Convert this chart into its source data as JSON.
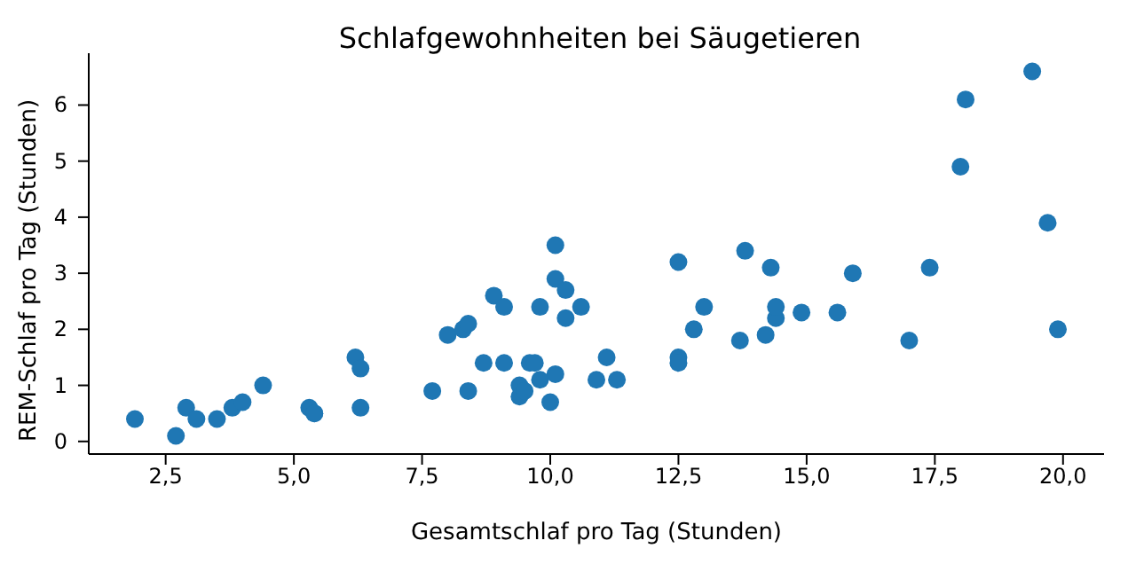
{
  "chart_data": {
    "type": "scatter",
    "title": "Schlafgewohnheiten bei Säugetieren",
    "xlabel": "Gesamtschlaf pro Tag (Stunden)",
    "ylabel": "REM-Schlaf pro Tag (Stunden)",
    "x": [
      1.9,
      2.7,
      2.9,
      3.1,
      3.5,
      3.8,
      4.0,
      4.4,
      5.3,
      5.4,
      5.4,
      6.2,
      6.3,
      6.3,
      7.7,
      8.0,
      8.3,
      8.4,
      8.4,
      8.7,
      8.9,
      9.1,
      9.1,
      9.4,
      9.4,
      9.5,
      9.6,
      9.7,
      9.8,
      9.8,
      10.0,
      10.1,
      10.1,
      10.1,
      10.3,
      10.3,
      10.6,
      10.9,
      11.1,
      11.3,
      12.5,
      12.5,
      12.5,
      12.8,
      13.0,
      13.7,
      13.8,
      14.2,
      14.3,
      14.4,
      14.4,
      14.9,
      15.6,
      15.9,
      17.0,
      17.4,
      18.0,
      18.1,
      19.4,
      19.7,
      19.9
    ],
    "series": [
      {
        "color": "#1f77b4",
        "values": [
          0.4,
          0.1,
          0.6,
          0.4,
          0.4,
          0.6,
          0.7,
          1.0,
          0.6,
          0.5,
          0.5,
          1.5,
          1.3,
          0.6,
          0.9,
          1.9,
          2.0,
          2.1,
          0.9,
          1.4,
          2.6,
          2.4,
          1.4,
          1.0,
          0.8,
          0.9,
          1.4,
          1.4,
          2.4,
          1.1,
          0.7,
          3.5,
          2.9,
          1.2,
          2.7,
          2.2,
          2.4,
          1.1,
          1.5,
          1.1,
          3.2,
          1.5,
          1.4,
          2.0,
          2.4,
          1.8,
          3.4,
          1.9,
          3.1,
          2.2,
          2.4,
          2.3,
          2.3,
          3.0,
          1.8,
          3.1,
          4.9,
          6.1,
          6.6,
          3.9,
          2.0
        ]
      }
    ],
    "xlim": [
      1.0,
      20.8
    ],
    "ylim": [
      -0.225,
      6.925
    ],
    "xticks": [
      {
        "value": 2.5,
        "label": "2,5"
      },
      {
        "value": 5,
        "label": "5,0"
      },
      {
        "value": 7.5,
        "label": "7,5"
      },
      {
        "value": 10,
        "label": "10,0"
      },
      {
        "value": 12.5,
        "label": "12,5"
      },
      {
        "value": 15,
        "label": "15,0"
      },
      {
        "value": 17.5,
        "label": "17,5"
      },
      {
        "value": 20,
        "label": "20,0"
      }
    ],
    "yticks": [
      0,
      1,
      2,
      3,
      4,
      5,
      6
    ],
    "grid": false,
    "legend": false,
    "marker": "circle"
  }
}
